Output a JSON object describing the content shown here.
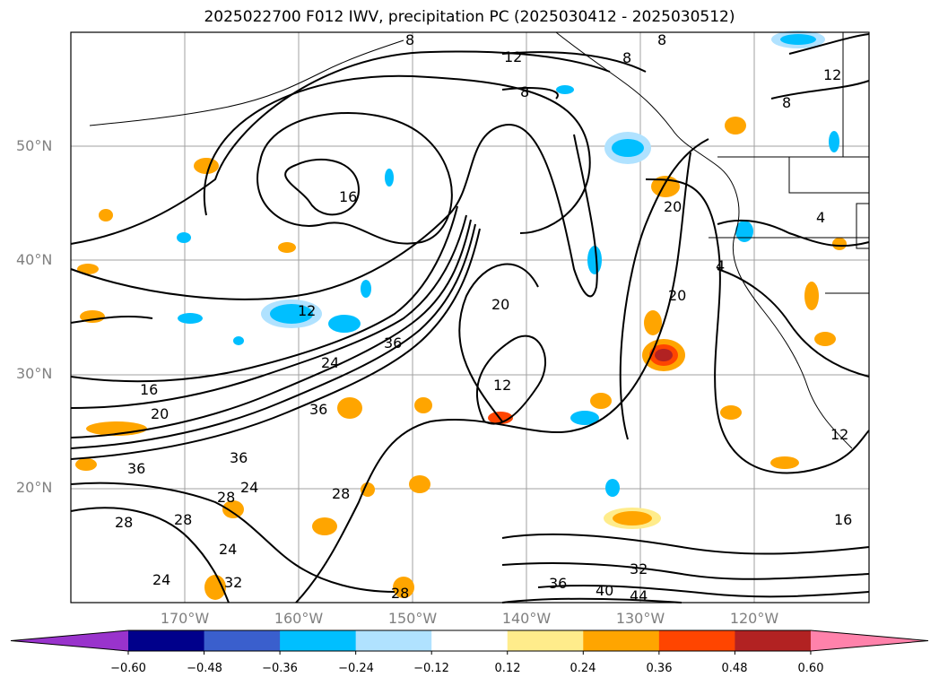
{
  "title": "2025022700 F012 IWV, precipitation PC (2025030412 - 2025030512)",
  "map": {
    "lat_labels": [
      {
        "text": "50°N",
        "lat": 50
      },
      {
        "text": "40°N",
        "lat": 40
      },
      {
        "text": "30°N",
        "lat": 30
      },
      {
        "text": "20°N",
        "lat": 20
      }
    ],
    "lon_labels": [
      {
        "text": "170°W",
        "lon": -170
      },
      {
        "text": "160°W",
        "lon": -160
      },
      {
        "text": "150°W",
        "lon": -150
      },
      {
        "text": "140°W",
        "lon": -140
      },
      {
        "text": "130°W",
        "lon": -130
      },
      {
        "text": "120°W",
        "lon": -120
      }
    ],
    "contour_labels": [
      "8",
      "8",
      "8",
      "8",
      "12",
      "12",
      "16",
      "12",
      "20",
      "36",
      "24",
      "20",
      "12",
      "16",
      "20",
      "36",
      "36",
      "36",
      "28",
      "24",
      "28",
      "28",
      "24",
      "24",
      "32",
      "28",
      "28",
      "32",
      "36",
      "40",
      "44",
      "4",
      "4",
      "8",
      "20",
      "12",
      "16"
    ]
  },
  "colorbar": {
    "ticks": [
      "−0.60",
      "−0.48",
      "−0.36",
      "−0.24",
      "−0.12",
      "0.12",
      "0.24",
      "0.36",
      "0.48",
      "0.60"
    ],
    "colors": [
      "#9933cc",
      "#00008b",
      "#3a5fcd",
      "#00bfff",
      "#b0e2ff",
      "#ffffff",
      "#ffec8b",
      "#ffa500",
      "#ff4500",
      "#b22222",
      "#ff82ab"
    ]
  }
}
